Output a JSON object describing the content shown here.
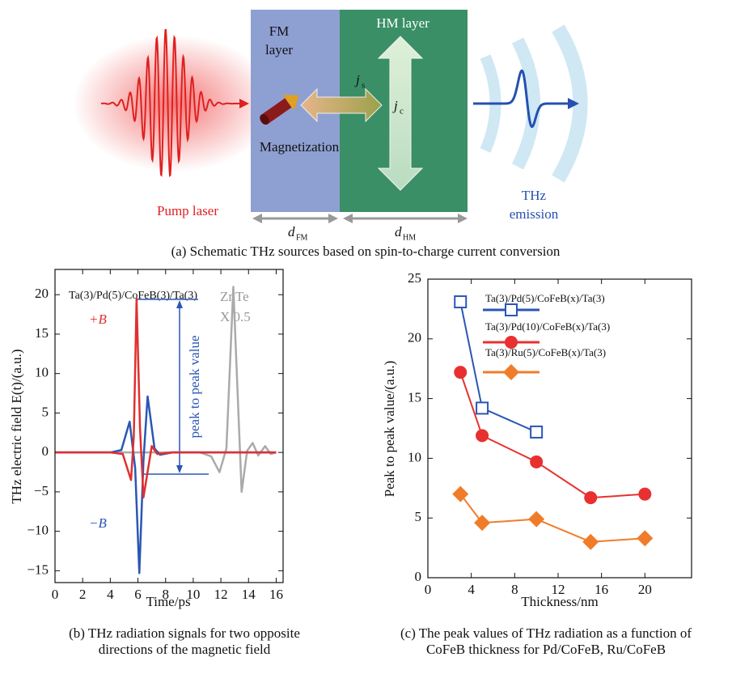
{
  "schematic": {
    "fm_layer": [
      "FM",
      "layer"
    ],
    "hm_layer": "HM layer",
    "magnetization": "Magnetization",
    "spin_current": [
      "j",
      "s"
    ],
    "charge_current": [
      "j",
      "c"
    ],
    "pump": "Pump laser",
    "emission": [
      "THz",
      "emission"
    ],
    "d_fm": [
      "d",
      "FM"
    ],
    "d_hm": [
      "d",
      "HM"
    ]
  },
  "captions": {
    "a": "(a) Schematic THz sources based on spin-to-charge current conversion",
    "b": [
      "(b) THz radiation signals for two opposite",
      "directions of the magnetic field"
    ],
    "c": [
      "(c) The peak values of THz radiation as a function of",
      "CoFeB thickness for Pd/CoFeB, Ru/CoFeB"
    ]
  },
  "chart_data": [
    {
      "type": "line",
      "x_label": "Time/ps",
      "y_label": "THz electric field E(t)/(a.u.)",
      "xlim": [
        0,
        16.5
      ],
      "ylim": [
        -16.5,
        23.2
      ],
      "xticks": [
        0,
        2,
        4,
        6,
        8,
        10,
        12,
        14,
        16
      ],
      "yticks": [
        {
          "value": -15,
          "label": "−15"
        },
        {
          "value": -10,
          "label": "−10"
        },
        {
          "value": -5,
          "label": "−5"
        },
        0,
        5,
        10,
        15,
        20
      ],
      "annotations": {
        "sample": "Ta(3)/Pd(5)/CoFeB(3)/Ta(3)",
        "plus_b": "+B",
        "minus_b": "−B",
        "ref": "ZnTe",
        "scale": "X 0.5",
        "peak_to_peak": "peak to peak value"
      },
      "series": [
        {
          "name": "ZnTe",
          "color": "#aaaaaa",
          "x": [
            0,
            4,
            8,
            10.5,
            11.3,
            11.9,
            12.4,
            12.9,
            13.5,
            13.9,
            14.3,
            14.7,
            15.2,
            15.6,
            16
          ],
          "values": [
            0,
            0,
            0,
            0,
            -0.5,
            -2.5,
            0.5,
            21,
            -5,
            0.2,
            1.2,
            -0.4,
            0.8,
            -0.2,
            0
          ]
        },
        {
          "name": "−B",
          "color": "#2b56b5",
          "x": [
            0,
            4,
            4.8,
            5.4,
            5.8,
            6.1,
            6.4,
            6.7,
            7.2,
            7.6,
            8.5,
            12,
            16
          ],
          "values": [
            0,
            0,
            0.3,
            3.9,
            -2,
            -15.3,
            -1,
            7.1,
            0.5,
            -0.3,
            0,
            0,
            0
          ]
        },
        {
          "name": "+B",
          "color": "#e03030",
          "x": [
            0,
            4,
            4.9,
            5.5,
            5.7,
            5.9,
            6.15,
            6.4,
            7.0,
            7.4,
            8.5,
            12,
            16
          ],
          "values": [
            0,
            0,
            -0.2,
            -3.5,
            2,
            19.5,
            3,
            -5.7,
            0.8,
            -0.2,
            0,
            0,
            0
          ]
        }
      ]
    },
    {
      "type": "line",
      "x_label": "Thickness/nm",
      "y_label": "Peak to peak value/(a.u.)",
      "xlim": [
        0,
        24.3
      ],
      "ylim": [
        0,
        25
      ],
      "xticks": [
        0,
        4,
        8,
        12,
        16,
        20
      ],
      "yticks": [
        0,
        5,
        10,
        15,
        20,
        25
      ],
      "series": [
        {
          "name": "Ta(3)/Pd(5)/CoFeB(x)/Ta(3)",
          "color": "#2b56b5",
          "marker": "square-open",
          "x": [
            3,
            5,
            10
          ],
          "values": [
            23.1,
            14.2,
            12.2
          ]
        },
        {
          "name": "Ta(3)/Pd(10)/CoFeB(x)/Ta(3)",
          "color": "#e83030",
          "marker": "circle",
          "x": [
            3,
            5,
            10,
            15,
            20
          ],
          "values": [
            17.2,
            11.9,
            9.7,
            6.7,
            7.0
          ]
        },
        {
          "name": "Ta(3)/Ru(5)/CoFeB(x)/Ta(3)",
          "color": "#f07c2a",
          "marker": "diamond",
          "x": [
            3,
            5,
            10,
            15,
            20
          ],
          "values": [
            7.0,
            4.6,
            4.9,
            3.0,
            3.3
          ]
        }
      ]
    }
  ]
}
